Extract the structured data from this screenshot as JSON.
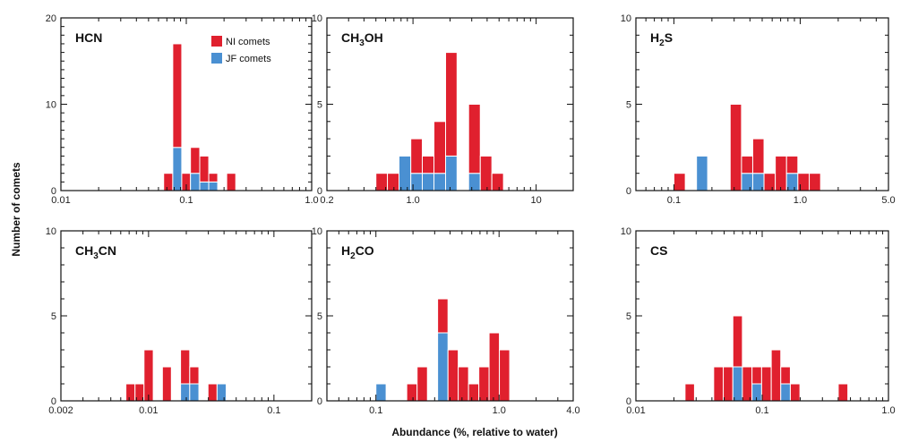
{
  "colors": {
    "nearly_isotropic": "#e0202e",
    "jupiter_family": "#4a90d2",
    "frame": "#111111"
  },
  "figure": {
    "ylabel": "Number of comets",
    "xlabel": "Abundance (%, relative to water)"
  },
  "legend": {
    "ni": "NI comets",
    "jf": "JF comets"
  },
  "chart_data": [
    {
      "type": "bar",
      "stacked": true,
      "xscale": "log",
      "title": "HCN",
      "title_main": "HCN",
      "title_sub": "",
      "title_tail": "",
      "xlim": [
        0.01,
        1.0
      ],
      "ylim": [
        0,
        20
      ],
      "xticks": [
        0.01,
        0.1,
        1.0
      ],
      "xticklabels": [
        "0.01",
        "0.1",
        "1.0"
      ],
      "yticks": [
        0,
        10,
        20
      ],
      "yticklabels": [
        "0",
        "10",
        "20"
      ],
      "bins": [
        [
          0.066,
          0.078
        ],
        [
          0.078,
          0.092
        ],
        [
          0.092,
          0.108
        ],
        [
          0.108,
          0.128
        ],
        [
          0.128,
          0.151
        ],
        [
          0.151,
          0.178
        ],
        [
          0.178,
          0.21
        ],
        [
          0.21,
          0.248
        ]
      ],
      "series": [
        {
          "name": "NI comets",
          "values": [
            2,
            12,
            2,
            3,
            3,
            1,
            0,
            2
          ]
        },
        {
          "name": "JF comets",
          "values": [
            0,
            5,
            0,
            2,
            1,
            1,
            0,
            0
          ]
        }
      ],
      "legend": true
    },
    {
      "type": "bar",
      "stacked": true,
      "xscale": "log",
      "title": "CH3OH",
      "title_main": "CH",
      "title_sub": "3",
      "title_tail": "OH",
      "xlim": [
        0.2,
        20
      ],
      "ylim": [
        0,
        10
      ],
      "xticks": [
        0.2,
        1.0,
        10
      ],
      "xticklabels": [
        "0.2",
        "1.0",
        "10"
      ],
      "yticks": [
        0,
        5,
        10
      ],
      "yticklabels": [
        "0",
        "5",
        "10"
      ],
      "bins": [
        [
          0.5,
          0.62
        ],
        [
          0.62,
          0.77
        ],
        [
          0.77,
          0.96
        ],
        [
          0.96,
          1.19
        ],
        [
          1.19,
          1.48
        ],
        [
          1.48,
          1.84
        ],
        [
          1.84,
          2.28
        ],
        [
          2.28,
          2.83
        ],
        [
          2.83,
          3.52
        ],
        [
          3.52,
          4.37
        ],
        [
          4.37,
          5.43
        ]
      ],
      "series": [
        {
          "name": "NI comets",
          "values": [
            1,
            1,
            0,
            2,
            1,
            3,
            6,
            0,
            4,
            2,
            1
          ]
        },
        {
          "name": "JF comets",
          "values": [
            0,
            0,
            2,
            1,
            1,
            1,
            2,
            0,
            1,
            0,
            0
          ]
        }
      ],
      "legend": false
    },
    {
      "type": "bar",
      "stacked": true,
      "xscale": "log",
      "title": "H2S",
      "title_main": "H",
      "title_sub": "2",
      "title_tail": "S",
      "xlim": [
        0.05,
        5.0
      ],
      "ylim": [
        0,
        10
      ],
      "xticks": [
        0.1,
        1.0,
        5.0
      ],
      "xticklabels": [
        "0.1",
        "1.0",
        "5.0"
      ],
      "yticks": [
        0,
        5,
        10
      ],
      "yticklabels": [
        "0",
        "5",
        "10"
      ],
      "bins": [
        [
          0.1,
          0.123
        ],
        [
          0.123,
          0.151
        ],
        [
          0.151,
          0.185
        ],
        [
          0.185,
          0.227
        ],
        [
          0.227,
          0.279
        ],
        [
          0.279,
          0.343
        ],
        [
          0.343,
          0.421
        ],
        [
          0.421,
          0.517
        ],
        [
          0.517,
          0.635
        ],
        [
          0.635,
          0.78
        ],
        [
          0.78,
          0.958
        ],
        [
          0.958,
          1.18
        ],
        [
          1.18,
          1.45
        ]
      ],
      "series": [
        {
          "name": "NI comets",
          "values": [
            1,
            0,
            0,
            0,
            0,
            5,
            1,
            2,
            1,
            2,
            1,
            1,
            1
          ]
        },
        {
          "name": "JF comets",
          "values": [
            0,
            0,
            2,
            0,
            0,
            0,
            1,
            1,
            0,
            0,
            1,
            0,
            0
          ]
        }
      ],
      "legend": false
    },
    {
      "type": "bar",
      "stacked": true,
      "xscale": "log",
      "title": "CH3CN",
      "title_main": "CH",
      "title_sub": "3",
      "title_tail": "CN",
      "xlim": [
        0.002,
        0.2
      ],
      "ylim": [
        0,
        10
      ],
      "xticks": [
        0.002,
        0.01,
        0.1
      ],
      "xticklabels": [
        "0.002",
        "0.01",
        "0.1"
      ],
      "yticks": [
        0,
        5,
        10
      ],
      "yticklabels": [
        "0",
        "5",
        "10"
      ],
      "bins": [
        [
          0.0066,
          0.0078
        ],
        [
          0.0078,
          0.0092
        ],
        [
          0.0092,
          0.0109
        ],
        [
          0.0109,
          0.0129
        ],
        [
          0.0129,
          0.0152
        ],
        [
          0.0152,
          0.018
        ],
        [
          0.018,
          0.0213
        ],
        [
          0.0213,
          0.0252
        ],
        [
          0.0252,
          0.0298
        ],
        [
          0.0298,
          0.0352
        ],
        [
          0.0352,
          0.0416
        ]
      ],
      "series": [
        {
          "name": "NI comets",
          "values": [
            1,
            1,
            3,
            0,
            2,
            0,
            2,
            1,
            0,
            1,
            0
          ]
        },
        {
          "name": "JF comets",
          "values": [
            0,
            0,
            0,
            0,
            0,
            0,
            1,
            1,
            0,
            0,
            1
          ]
        }
      ],
      "legend": false
    },
    {
      "type": "bar",
      "stacked": true,
      "xscale": "log",
      "title": "H2CO",
      "title_main": "H",
      "title_sub": "2",
      "title_tail": "CO",
      "xlim": [
        0.04,
        4.0
      ],
      "ylim": [
        0,
        10
      ],
      "xticks": [
        0.1,
        1.0,
        4.0
      ],
      "xticklabels": [
        "0.1",
        "1.0",
        "4.0"
      ],
      "yticks": [
        0,
        5,
        10
      ],
      "yticklabels": [
        "0",
        "5",
        "10"
      ],
      "bins": [
        [
          0.1,
          0.121
        ],
        [
          0.121,
          0.147
        ],
        [
          0.147,
          0.178
        ],
        [
          0.178,
          0.216
        ],
        [
          0.216,
          0.262
        ],
        [
          0.262,
          0.317
        ],
        [
          0.317,
          0.385
        ],
        [
          0.385,
          0.466
        ],
        [
          0.466,
          0.565
        ],
        [
          0.565,
          0.685
        ],
        [
          0.685,
          0.83
        ],
        [
          0.83,
          1.006
        ],
        [
          1.006,
          1.22
        ]
      ],
      "series": [
        {
          "name": "NI comets",
          "values": [
            0,
            0,
            0,
            1,
            2,
            0,
            2,
            3,
            2,
            1,
            2,
            4,
            3
          ]
        },
        {
          "name": "JF comets",
          "values": [
            1,
            0,
            0,
            0,
            0,
            0,
            4,
            0,
            0,
            0,
            0,
            0,
            0
          ]
        }
      ],
      "legend": false
    },
    {
      "type": "bar",
      "stacked": true,
      "xscale": "log",
      "title": "CS",
      "title_main": "CS",
      "title_sub": "",
      "title_tail": "",
      "xlim": [
        0.01,
        1.0
      ],
      "ylim": [
        0,
        10
      ],
      "xticks": [
        0.01,
        0.1,
        1.0
      ],
      "xticklabels": [
        "0.01",
        "0.1",
        "1.0"
      ],
      "yticks": [
        0,
        5,
        10
      ],
      "yticklabels": [
        "0",
        "5",
        "10"
      ],
      "bins": [
        [
          0.0245,
          0.0291
        ],
        [
          0.0291,
          0.0347
        ],
        [
          0.0347,
          0.0413
        ],
        [
          0.0413,
          0.0492
        ],
        [
          0.0492,
          0.0586
        ],
        [
          0.0586,
          0.0697
        ],
        [
          0.0697,
          0.0831
        ],
        [
          0.0831,
          0.099
        ],
        [
          0.099,
          0.118
        ],
        [
          0.118,
          0.1403
        ],
        [
          0.1403,
          0.1671
        ],
        [
          0.1671,
          0.199
        ],
        [
          0.199,
          0.237
        ],
        [
          0.237,
          0.2822
        ],
        [
          0.2822,
          0.3361
        ],
        [
          0.3361,
          0.4003
        ],
        [
          0.4003,
          0.4767
        ]
      ],
      "series": [
        {
          "name": "NI comets",
          "values": [
            1,
            0,
            0,
            2,
            2,
            3,
            2,
            1,
            2,
            3,
            1,
            1,
            0,
            0,
            0,
            0,
            1
          ]
        },
        {
          "name": "JF comets",
          "values": [
            0,
            0,
            0,
            0,
            0,
            2,
            0,
            1,
            0,
            0,
            1,
            0,
            0,
            0,
            0,
            0,
            0
          ]
        }
      ],
      "legend": false
    }
  ]
}
